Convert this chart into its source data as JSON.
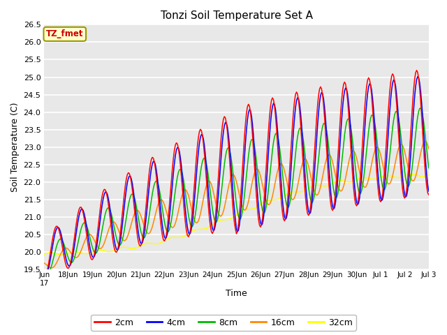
{
  "title": "Tonzi Soil Temperature Set A",
  "xlabel": "Time",
  "ylabel": "Soil Temperature (C)",
  "ylim": [
    19.5,
    26.5
  ],
  "yticks": [
    19.5,
    20.0,
    20.5,
    21.0,
    21.5,
    22.0,
    22.5,
    23.0,
    23.5,
    24.0,
    24.5,
    25.0,
    25.5,
    26.0,
    26.5
  ],
  "line_colors": {
    "2cm": "#ff0000",
    "4cm": "#0000ff",
    "8cm": "#00bb00",
    "16cm": "#ff8800",
    "32cm": "#ffff00"
  },
  "legend_label": "TZ_fmet",
  "legend_box_facecolor": "#ffffcc",
  "legend_box_edgecolor": "#999900",
  "legend_text_color": "#cc0000",
  "fig_facecolor": "#ffffff",
  "plot_facecolor": "#e8e8e8",
  "grid_color": "#ffffff",
  "line_width": 1.1,
  "n_days": 16,
  "start_day": 17,
  "start_month": "Jun"
}
